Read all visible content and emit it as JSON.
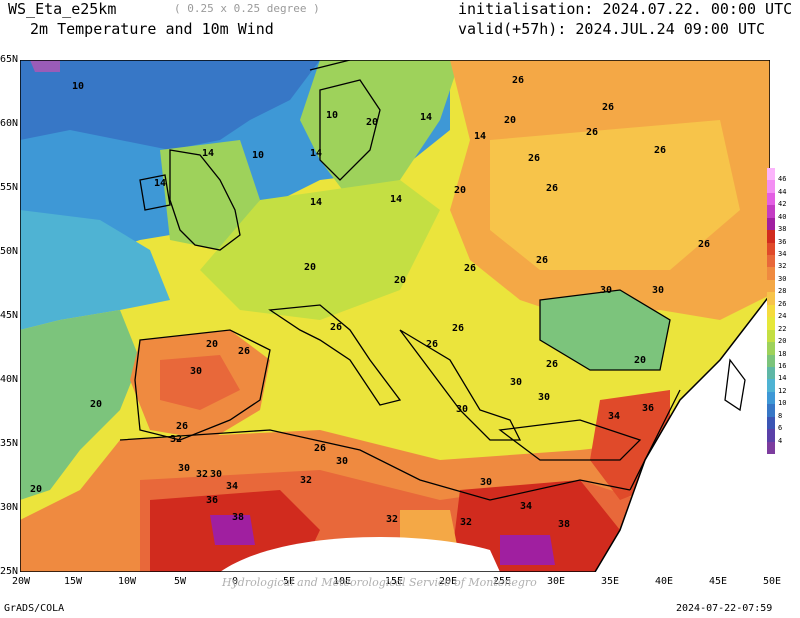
{
  "header": {
    "model": "WS_Eta_e25km",
    "resolution": "( 0.25 x 0.25 degree )",
    "product": "2m Temperature and 10m Wind",
    "initialisation": "initialisation: 2024.07.22. 00:00 UTC",
    "valid": "valid(+57h): 2024.JUL.24 09:00 UTC"
  },
  "axes": {
    "lat_ticks": [
      "65N",
      "60N",
      "55N",
      "50N",
      "45N",
      "40N",
      "35N",
      "30N",
      "25N"
    ],
    "lon_ticks": [
      "20W",
      "15W",
      "10W",
      "5W",
      "0",
      "5E",
      "10E",
      "15E",
      "20E",
      "25E",
      "30E",
      "35E",
      "40E",
      "45E",
      "50E"
    ]
  },
  "contour_labels": [
    "10",
    "10",
    "10",
    "14",
    "14",
    "14",
    "14",
    "14",
    "14",
    "14",
    "20",
    "20",
    "20",
    "20",
    "20",
    "20",
    "20",
    "20",
    "20",
    "26",
    "26",
    "26",
    "26",
    "26",
    "26",
    "26",
    "26",
    "26",
    "26",
    "26",
    "26",
    "26",
    "26",
    "26",
    "26",
    "30",
    "30",
    "30",
    "30",
    "30",
    "30",
    "30",
    "30",
    "30",
    "30",
    "32",
    "32",
    "32",
    "32",
    "32",
    "34",
    "34",
    "34",
    "36",
    "36",
    "38",
    "38"
  ],
  "colorbar": {
    "labels": [
      "46",
      "44",
      "42",
      "40",
      "38",
      "36",
      "34",
      "32",
      "30",
      "28",
      "26",
      "24",
      "22",
      "20",
      "18",
      "16",
      "14",
      "12",
      "10",
      "8",
      "6",
      "4"
    ],
    "colors": [
      "#fbb4fb",
      "#f38ef3",
      "#e35ee3",
      "#c43cc4",
      "#a01fa0",
      "#d12b1e",
      "#e04a2a",
      "#e8683a",
      "#ef8a40",
      "#f4a846",
      "#f7c44a",
      "#f5dc3e",
      "#e6e83a",
      "#c4df43",
      "#9ed25b",
      "#7cc47c",
      "#5fb7a6",
      "#4fb3d3",
      "#3e98d6",
      "#3777c6",
      "#3b55b4",
      "#5a40a8",
      "#7c3c9e"
    ]
  },
  "footer": {
    "left": "GrADS/COLA",
    "right": "2024-07-22-07:59",
    "watermark": "Hydrological and Meteorological Service of Montenegro"
  }
}
